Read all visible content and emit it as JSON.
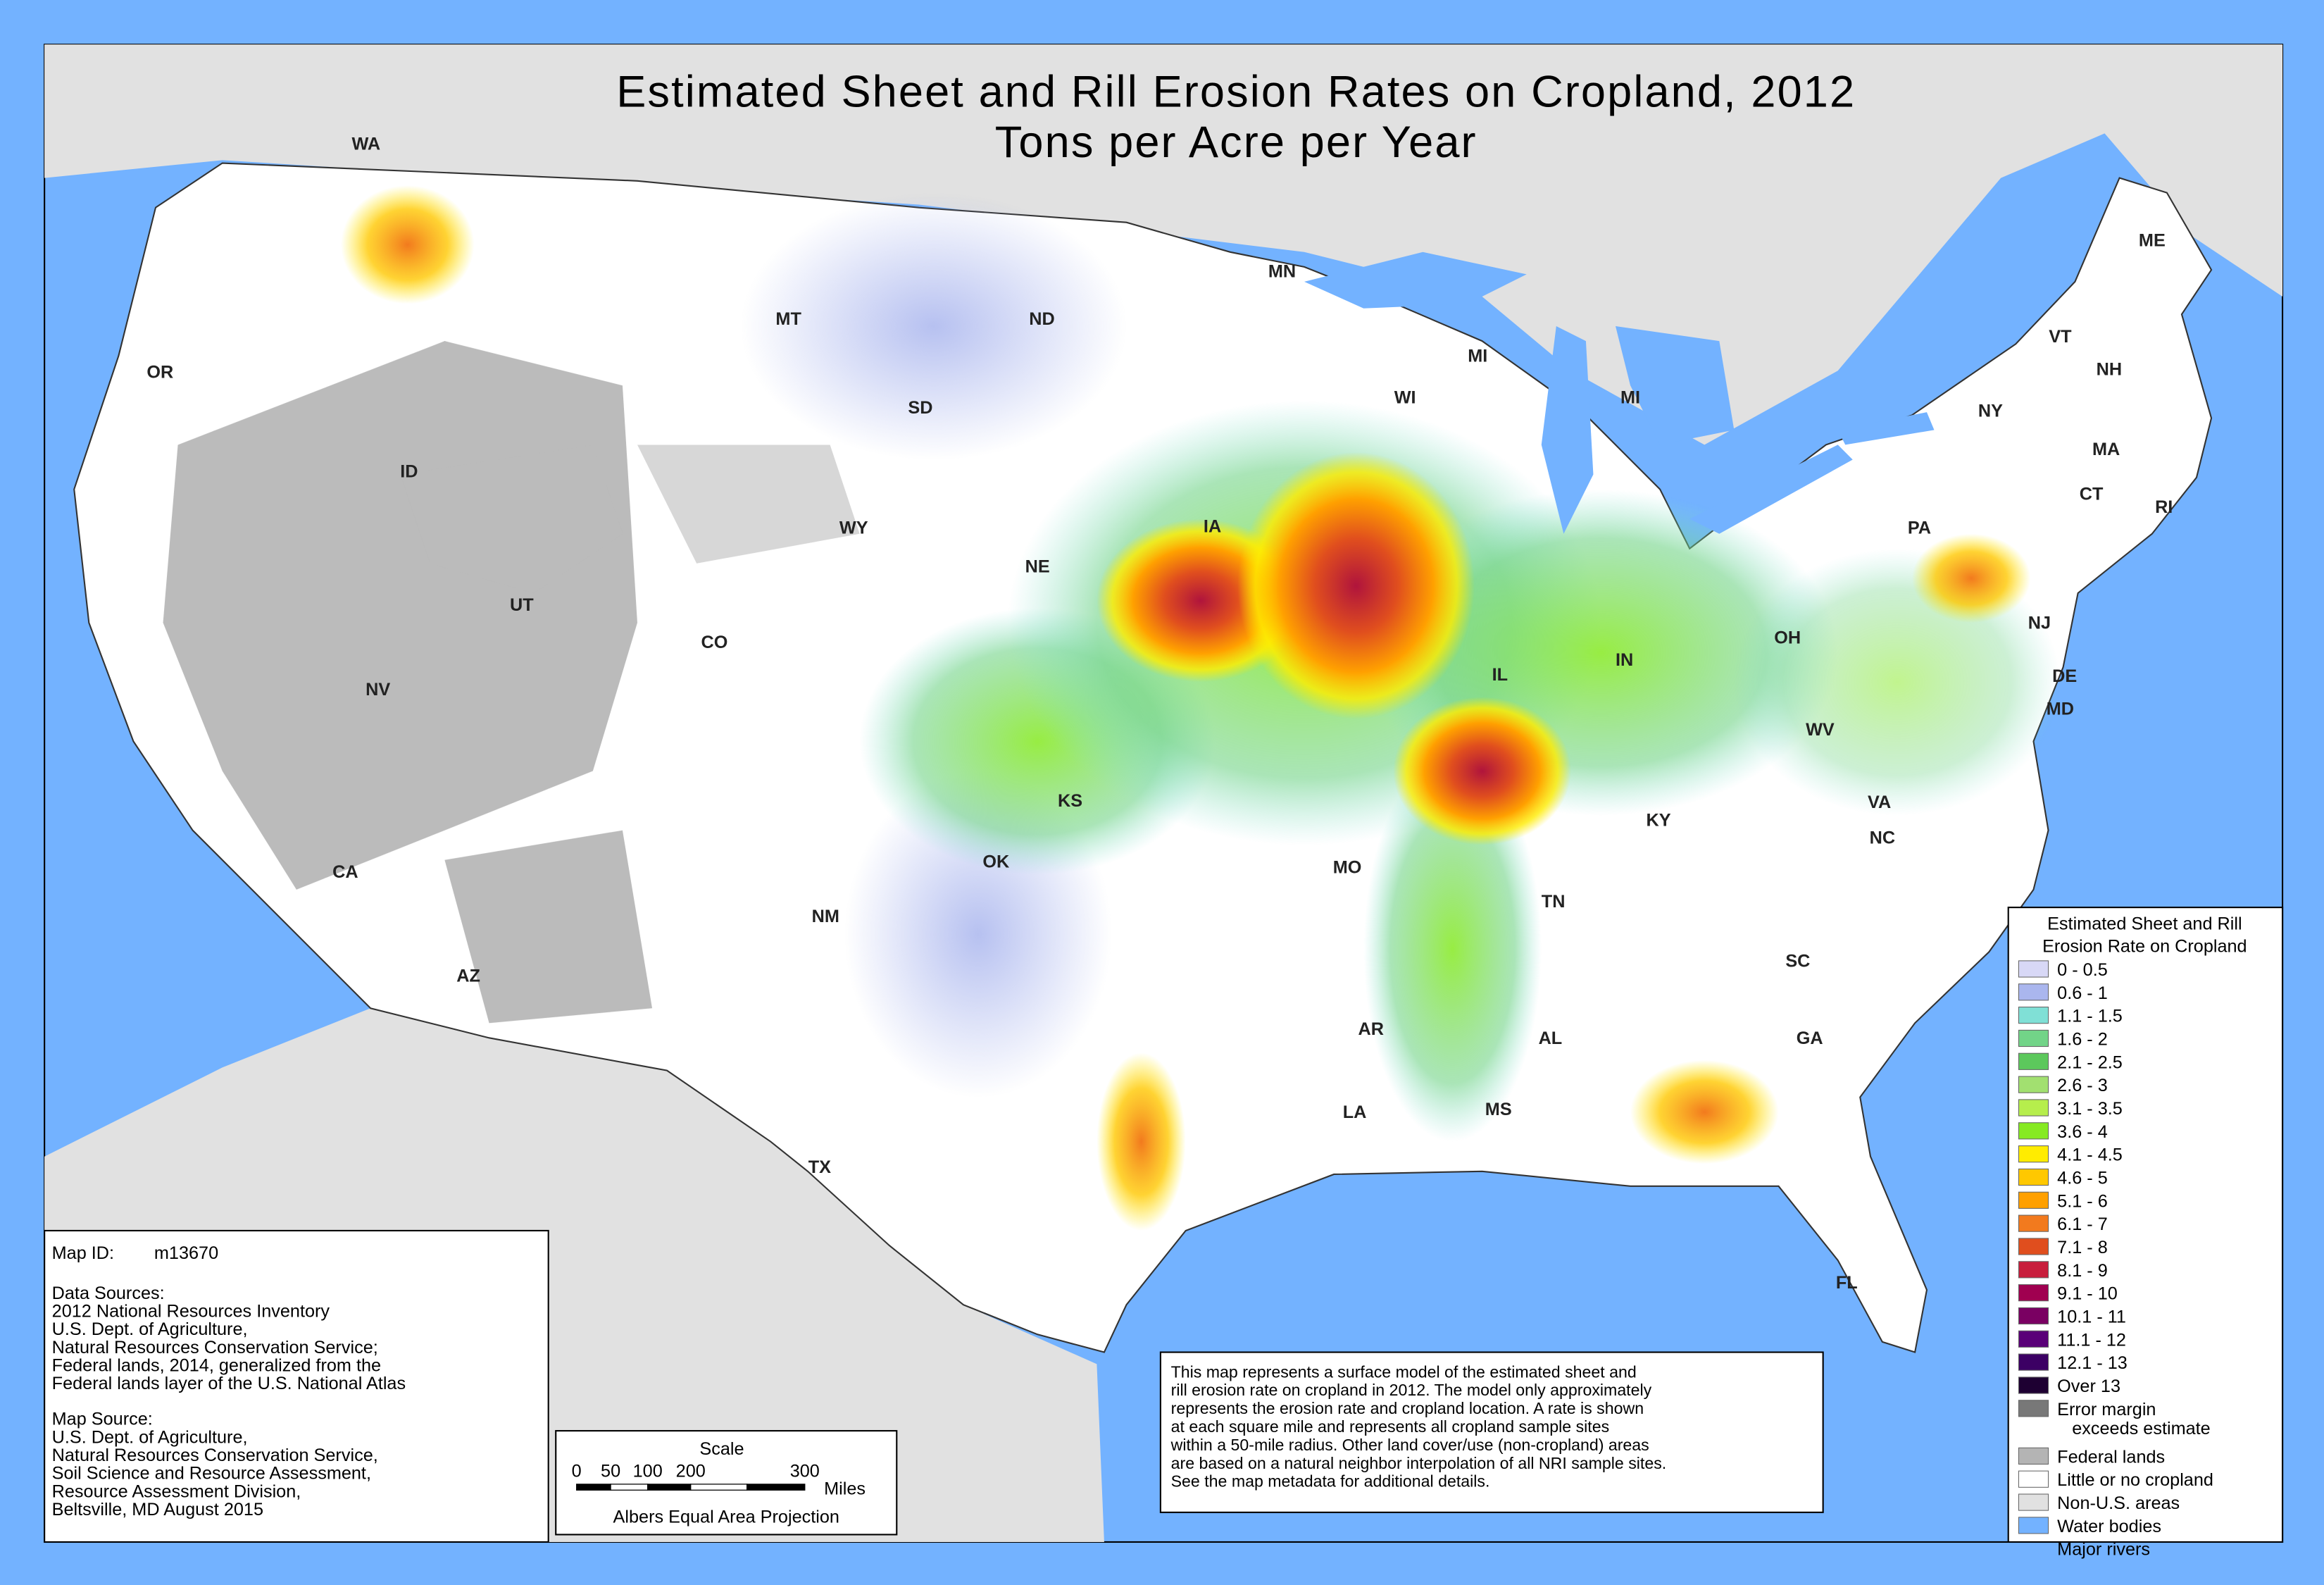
{
  "title": {
    "line1": "Estimated Sheet and Rill Erosion Rates on Cropland, 2012",
    "line2": "Tons per Acre per Year"
  },
  "states": [
    "WA",
    "OR",
    "ID",
    "MT",
    "ND",
    "MN",
    "SD",
    "WI",
    "MI",
    "MI",
    "WY",
    "NE",
    "IA",
    "UT",
    "CO",
    "NV",
    "IL",
    "IN",
    "OH",
    "PA",
    "NY",
    "VT",
    "NH",
    "ME",
    "MA",
    "CT",
    "RI",
    "NJ",
    "DE",
    "MD",
    "WV",
    "VA",
    "KY",
    "KS",
    "CA",
    "OK",
    "MO",
    "TN",
    "NC",
    "NM",
    "AZ",
    "AR",
    "SC",
    "AL",
    "GA",
    "MS",
    "LA",
    "TX",
    "FL"
  ],
  "legend": {
    "title": [
      "Estimated Sheet and Rill",
      "Erosion Rate on Cropland"
    ],
    "items": [
      {
        "label": "0 - 0.5",
        "color": "#d8d8f6"
      },
      {
        "label": "0.6 - 1",
        "color": "#aab6ee"
      },
      {
        "label": "1.1 - 1.5",
        "color": "#80e0d6"
      },
      {
        "label": "1.6 - 2",
        "color": "#72d488"
      },
      {
        "label": "2.1 - 2.5",
        "color": "#5cc85c"
      },
      {
        "label": "2.6 - 3",
        "color": "#a2e070"
      },
      {
        "label": "3.1 - 3.5",
        "color": "#b6ee4c"
      },
      {
        "label": "3.6 - 4",
        "color": "#86ea22"
      },
      {
        "label": "4.1 - 4.5",
        "color": "#ffec00"
      },
      {
        "label": "4.6 - 5",
        "color": "#ffc800"
      },
      {
        "label": "5.1 - 6",
        "color": "#ffa000"
      },
      {
        "label": "6.1 - 7",
        "color": "#f27a1e"
      },
      {
        "label": "7.1 - 8",
        "color": "#e04e1e"
      },
      {
        "label": "8.1 - 9",
        "color": "#c81e3c"
      },
      {
        "label": "9.1 - 10",
        "color": "#a00050"
      },
      {
        "label": "10.1 - 11",
        "color": "#7a0062"
      },
      {
        "label": "11.1 - 12",
        "color": "#5a0078"
      },
      {
        "label": "12.1 - 13",
        "color": "#3c0064"
      },
      {
        "label": "Over 13",
        "color": "#1e0032"
      },
      {
        "label": "Error margin",
        "label2": "exceeds estimate",
        "color": "#787878"
      },
      {
        "label": "Federal lands",
        "color": "#b4b4b4"
      },
      {
        "label": "Little or no cropland",
        "color": "#ffffff"
      },
      {
        "label": "Non-U.S. areas",
        "color": "#e1e1e1"
      },
      {
        "label": "Water bodies",
        "color": "#73b2ff"
      },
      {
        "label": "Major rivers",
        "color": "#73b2ff",
        "swatch": "line"
      }
    ]
  },
  "info": {
    "map_id_label": "Map ID:",
    "map_id": "m13670",
    "data_sources": {
      "heading": "Data Sources:",
      "lines": [
        "2012 National Resources Inventory",
        "U.S. Dept. of Agriculture,",
        "Natural Resources Conservation Service;",
        "Federal lands, 2014, generalized from the",
        "Federal lands layer of the U.S. National Atlas"
      ]
    },
    "map_source": {
      "heading": "Map Source:",
      "lines": [
        "U.S. Dept. of Agriculture,",
        "Natural Resources Conservation Service,",
        "Soil Science and Resource Assessment,",
        "Resource Assessment Division,",
        "Beltsville, MD    August 2015"
      ]
    }
  },
  "scale": {
    "title": "Scale",
    "ticks": [
      "0",
      "50",
      "100",
      "200",
      "300"
    ],
    "unit": "Miles",
    "projection": "Albers Equal Area Projection"
  },
  "note": [
    "This map represents a surface model of the estimated sheet and",
    "rill erosion rate on cropland in 2012.  The model only approximately",
    "represents the erosion rate and cropland location.  A rate is shown",
    "at each square mile and represents all cropland sample sites",
    "within a 50-mile radius. Other land cover/use (non-cropland) areas",
    "are based on a natural neighbor interpolation of all NRI sample sites.",
    "See the map metadata for additional details."
  ]
}
